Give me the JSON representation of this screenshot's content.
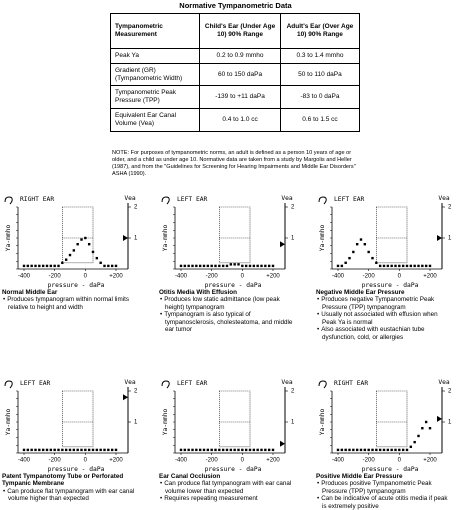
{
  "title": "Normative Tympanometric Data",
  "table": {
    "header": [
      "Tympanometric Measurement",
      "Child's Ear (Under Age 10) 90% Range",
      "Adult's Ear (Over Age 10) 90% Range"
    ],
    "rows": [
      [
        "Peak Ya",
        "0.2 to 0.9 mmho",
        "0.3 to 1.4 mmho"
      ],
      [
        "Gradient (GR) (Tympanometric Width)",
        "60 to 150 daPa",
        "50 to 110 daPa"
      ],
      [
        "Tympanometric Peak Pressure (TPP)",
        "-139 to +11 daPa",
        "-83 to 0 daPa"
      ],
      [
        "Equivalent Ear Canal Volume (Vea)",
        "0.4 to 1.0 cc",
        "0.6 to 1.5 cc"
      ]
    ]
  },
  "note": "NOTE: For purposes of tympanometric norms, an adult is defined as a person 10 years of age or older, and a child as under age 10. Normative data are taken from a study by Margolis and Heller (1987), and from the \"Guidelines for Screening for Hearing Impairments and Middle Ear Disorders\" ASHA (1990).",
  "charts": [
    {
      "ear": "RIGHT EAR",
      "ylabel": "Ya-mmho",
      "xlabel": "pressure - daPa",
      "y2label": "Vea",
      "xlim": [
        -400,
        200
      ],
      "ylim": [
        0,
        2
      ],
      "xticks": [
        {
          "value": -400,
          "label": "-400"
        },
        {
          "value": -200,
          "label": "-200"
        },
        0,
        {
          "value": 200,
          "label": "+200"
        }
      ],
      "y2ticks": [
        1,
        2
      ],
      "x": [
        -400,
        -375,
        -350,
        -325,
        -300,
        -275,
        -250,
        -225,
        -200,
        -175,
        -150,
        -125,
        -100,
        -75,
        -50,
        -25,
        0,
        25,
        50,
        75,
        100,
        125,
        150,
        175,
        200
      ],
      "values": [
        0.1,
        0.1,
        0.1,
        0.1,
        0.1,
        0.1,
        0.1,
        0.1,
        0.1,
        0.1,
        0.2,
        0.3,
        0.45,
        0.6,
        0.8,
        0.95,
        1.0,
        0.8,
        0.55,
        0.35,
        0.2,
        0.1,
        0.1,
        0.1,
        0.1
      ],
      "vea": 1.0,
      "heading": "Normal Middle Ear",
      "bullets": [
        "Produces tympanogram within normal limits relative to height and width"
      ]
    },
    {
      "ear": "LEFT EAR",
      "ylabel": "Ya-mmho",
      "xlabel": "pressure - daPa",
      "y2label": "Vea",
      "xlim": [
        -400,
        200
      ],
      "ylim": [
        0,
        2
      ],
      "xticks": [
        {
          "value": -400,
          "label": "-400"
        },
        {
          "value": -200,
          "label": "-200"
        },
        0,
        {
          "value": 200,
          "label": "+200"
        }
      ],
      "y2ticks": [
        1,
        2
      ],
      "x": [
        -400,
        -375,
        -350,
        -325,
        -300,
        -275,
        -250,
        -225,
        -200,
        -175,
        -150,
        -125,
        -100,
        -75,
        -50,
        -25,
        0,
        25,
        50,
        75,
        100,
        125,
        150,
        175,
        200
      ],
      "values": [
        0.1,
        0.1,
        0.1,
        0.1,
        0.1,
        0.1,
        0.1,
        0.1,
        0.1,
        0.1,
        0.1,
        0.1,
        0.1,
        0.15,
        0.15,
        0.15,
        0.1,
        0.1,
        0.1,
        0.1,
        0.1,
        0.1,
        0.1,
        0.1,
        0.1
      ],
      "vea": 0.8,
      "heading": "Otitis Media With Effusion",
      "bullets": [
        "Produces low static admittance (low peak height) tympanogram",
        "Tympanogram is also typical of tympanosclerosis, cholesteatoma, and middle ear tumor"
      ]
    },
    {
      "ear": "LEFT EAR",
      "ylabel": "Ya-mmho",
      "xlabel": "pressure - daPa",
      "y2label": "Vea",
      "xlim": [
        -400,
        200
      ],
      "ylim": [
        0,
        2
      ],
      "xticks": [
        {
          "value": -400,
          "label": "-400"
        },
        {
          "value": -200,
          "label": "-200"
        },
        0,
        {
          "value": 200,
          "label": "+200"
        }
      ],
      "y2ticks": [
        1,
        2
      ],
      "x": [
        -400,
        -375,
        -350,
        -325,
        -300,
        -275,
        -250,
        -225,
        -200,
        -175,
        -150,
        -125,
        -100,
        -75,
        -50,
        -25,
        0,
        25,
        50,
        75,
        100,
        125,
        150,
        175,
        200
      ],
      "values": [
        0.1,
        0.1,
        0.2,
        0.35,
        0.55,
        0.8,
        0.95,
        0.8,
        0.55,
        0.35,
        0.2,
        0.1,
        0.1,
        0.1,
        0.1,
        0.1,
        0.1,
        0.1,
        0.1,
        0.1,
        0.1,
        0.1,
        0.1,
        0.1,
        0.1
      ],
      "vea": 1.0,
      "heading": "Negative Middle Ear Pressure",
      "bullets": [
        "Produces negative Tympanometric Peak Pressure (TPP) tympanogram",
        "Usually not associated with effusion when Peak Ya is normal",
        "Also associated with eustachian tube dysfunction, cold, or allergies"
      ]
    },
    {
      "ear": "LEFT EAR",
      "ylabel": "Ya-mmho",
      "xlabel": "pressure - daPa",
      "y2label": "Vea",
      "xlim": [
        -400,
        200
      ],
      "ylim": [
        0,
        2
      ],
      "xticks": [
        {
          "value": -400,
          "label": "-400"
        },
        {
          "value": -200,
          "label": "-200"
        },
        0,
        {
          "value": 200,
          "label": "+200"
        }
      ],
      "y2ticks": [
        1,
        2
      ],
      "x": [
        -400,
        -375,
        -350,
        -325,
        -300,
        -275,
        -250,
        -225,
        -200,
        -175,
        -150,
        -125,
        -100,
        -75,
        -50,
        -25,
        0,
        25,
        50,
        75,
        100,
        125,
        150,
        175,
        200
      ],
      "values": [
        0.1,
        0.1,
        0.1,
        0.1,
        0.1,
        0.1,
        0.1,
        0.1,
        0.1,
        0.1,
        0.1,
        0.1,
        0.1,
        0.1,
        0.1,
        0.1,
        0.1,
        0.1,
        0.1,
        0.1,
        0.1,
        0.1,
        0.1,
        0.1,
        0.1
      ],
      "vea": 1.8,
      "heading": "Patent Tympanotomy Tube or Perforated Tympanic Membrane",
      "bullets": [
        "Can produce flat tympanogram with ear canal volume higher than expected"
      ]
    },
    {
      "ear": "LEFT EAR",
      "ylabel": "Ya-mmho",
      "xlabel": "pressure - daPa",
      "y2label": "Vea",
      "xlim": [
        -400,
        200
      ],
      "ylim": [
        0,
        2
      ],
      "xticks": [
        {
          "value": -400,
          "label": "-400"
        },
        {
          "value": -200,
          "label": "-200"
        },
        0,
        {
          "value": 200,
          "label": "+200"
        }
      ],
      "y2ticks": [
        1,
        2
      ],
      "x": [
        -400,
        -375,
        -350,
        -325,
        -300,
        -275,
        -250,
        -225,
        -200,
        -175,
        -150,
        -125,
        -100,
        -75,
        -50,
        -25,
        0,
        25,
        50,
        75,
        100,
        125,
        150,
        175,
        200
      ],
      "values": [
        0.1,
        0.1,
        0.1,
        0.1,
        0.1,
        0.1,
        0.1,
        0.1,
        0.1,
        0.1,
        0.1,
        0.1,
        0.1,
        0.1,
        0.1,
        0.1,
        0.1,
        0.1,
        0.1,
        0.1,
        0.1,
        0.1,
        0.1,
        0.1,
        0.1
      ],
      "vea": 0.3,
      "heading": "Ear Canal Occlusion",
      "bullets": [
        "Can produce flat tympanogram with ear canal volume lower than expected",
        "Requires repeating measurement"
      ]
    },
    {
      "ear": "RIGHT EAR",
      "ylabel": "Ya-mmho",
      "xlabel": "pressure - daPa",
      "y2label": "Vea",
      "xlim": [
        -400,
        200
      ],
      "ylim": [
        0,
        2
      ],
      "xticks": [
        {
          "value": -400,
          "label": "-400"
        },
        {
          "value": -200,
          "label": "-200"
        },
        0,
        {
          "value": 200,
          "label": "+200"
        }
      ],
      "y2ticks": [
        1,
        2
      ],
      "x": [
        -400,
        -375,
        -350,
        -325,
        -300,
        -275,
        -250,
        -225,
        -200,
        -175,
        -150,
        -125,
        -100,
        -75,
        -50,
        -25,
        0,
        25,
        50,
        75,
        100,
        125,
        150,
        175,
        200
      ],
      "values": [
        0.1,
        0.1,
        0.1,
        0.1,
        0.1,
        0.1,
        0.1,
        0.1,
        0.1,
        0.1,
        0.1,
        0.1,
        0.1,
        0.1,
        0.1,
        0.1,
        0.1,
        0.1,
        0.1,
        0.2,
        0.35,
        0.55,
        0.8,
        1.0,
        0.8
      ],
      "vea": 1.1,
      "heading": "Positive Middle Ear Pressure",
      "bullets": [
        "Produces positive Tympanometric Peak Pressure (TPP) tympanogram",
        "Can be indicative of acute otitis media if peak is extremely positive"
      ]
    }
  ]
}
